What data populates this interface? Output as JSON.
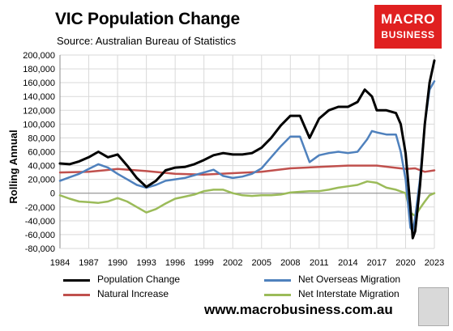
{
  "title": "VIC Population Change",
  "subtitle": "Source: Australian Bureau of Statistics",
  "logo": {
    "line1": "MACRO",
    "line2": "BUSINESS"
  },
  "website": "www.macrobusiness.com.au",
  "chart_data": {
    "type": "line",
    "title": "VIC Population Change",
    "ylabel": "Rolling Annual",
    "xlabel": "",
    "ylim": [
      -80000,
      200000
    ],
    "xlim": [
      1984,
      2023
    ],
    "yticks": [
      "200,000",
      "180,000",
      "160,000",
      "140,000",
      "120,000",
      "100,000",
      "80,000",
      "60,000",
      "40,000",
      "20,000",
      "0",
      "-20,000",
      "-40,000",
      "-60,000",
      "-80,000"
    ],
    "xticks": [
      "1984",
      "1987",
      "1990",
      "1993",
      "1996",
      "1999",
      "2002",
      "2005",
      "2008",
      "2011",
      "2014",
      "2017",
      "2020",
      "2023"
    ],
    "grid": true,
    "legend_position": "bottom",
    "series": [
      {
        "name": "Population Change",
        "color": "#000000",
        "x": [
          1984,
          1985,
          1986,
          1987,
          1988,
          1989,
          1990,
          1991,
          1992,
          1993,
          1994,
          1995,
          1996,
          1997,
          1998,
          1999,
          2000,
          2001,
          2002,
          2003,
          2004,
          2005,
          2006,
          2007,
          2008,
          2009,
          2010,
          2011,
          2012,
          2013,
          2014,
          2015,
          2015.75,
          2016.5,
          2017,
          2018,
          2019,
          2019.5,
          2020,
          2020.5,
          2020.75,
          2021,
          2021.5,
          2022,
          2022.5,
          2023
        ],
        "values": [
          43000,
          42000,
          46000,
          52000,
          60000,
          52000,
          56000,
          40000,
          22000,
          9000,
          18000,
          33000,
          37000,
          38000,
          42000,
          48000,
          55000,
          58000,
          56000,
          56000,
          58000,
          66000,
          80000,
          98000,
          112000,
          112000,
          80000,
          108000,
          120000,
          125000,
          125000,
          132000,
          150000,
          140000,
          120000,
          120000,
          116000,
          100000,
          58000,
          -20000,
          -65000,
          -55000,
          10000,
          100000,
          160000,
          192000
        ]
      },
      {
        "name": "Net Overseas Migration",
        "color": "#4f81bd",
        "x": [
          1984,
          1985,
          1986,
          1987,
          1988,
          1989,
          1990,
          1991,
          1992,
          1993,
          1994,
          1995,
          1996,
          1997,
          1998,
          1999,
          2000,
          2001,
          2002,
          2003,
          2004,
          2005,
          2006,
          2007,
          2008,
          2009,
          2010,
          2011,
          2012,
          2013,
          2014,
          2015,
          2016,
          2016.5,
          2017,
          2018,
          2019,
          2019.5,
          2020,
          2020.5,
          2020.75,
          2021,
          2021.5,
          2022,
          2022.5,
          2023
        ],
        "values": [
          18000,
          23000,
          28000,
          35000,
          42000,
          37000,
          28000,
          20000,
          12000,
          8000,
          12000,
          18000,
          20000,
          22000,
          26000,
          30000,
          34000,
          25000,
          22000,
          24000,
          28000,
          36000,
          52000,
          68000,
          82000,
          82000,
          45000,
          55000,
          58000,
          60000,
          58000,
          60000,
          78000,
          90000,
          88000,
          85000,
          85000,
          60000,
          20000,
          -50000,
          -55000,
          -35000,
          20000,
          100000,
          150000,
          162000
        ]
      },
      {
        "name": "Natural Increase",
        "color": "#c0504d",
        "x": [
          1984,
          1987,
          1990,
          1993,
          1996,
          1999,
          2002,
          2005,
          2008,
          2011,
          2014,
          2017,
          2020,
          2021,
          2022,
          2023
        ],
        "values": [
          30000,
          31000,
          35000,
          32000,
          28000,
          27000,
          29000,
          31000,
          36000,
          38000,
          40000,
          40000,
          35000,
          36000,
          31000,
          33000
        ]
      },
      {
        "name": "Net Interstate Migration",
        "color": "#9bbb59",
        "x": [
          1984,
          1985,
          1986,
          1987,
          1988,
          1989,
          1990,
          1991,
          1992,
          1993,
          1994,
          1995,
          1996,
          1997,
          1998,
          1999,
          2000,
          2001,
          2002,
          2003,
          2004,
          2005,
          2006,
          2007,
          2008,
          2009,
          2010,
          2011,
          2012,
          2013,
          2014,
          2015,
          2016,
          2017,
          2018,
          2019,
          2020,
          2020.5,
          2021,
          2021.5,
          2022,
          2022.5,
          2023
        ],
        "values": [
          -3000,
          -8000,
          -12000,
          -13000,
          -14000,
          -12000,
          -7000,
          -12000,
          -20000,
          -28000,
          -23000,
          -15000,
          -8000,
          -5000,
          -2000,
          3000,
          5000,
          5000,
          0,
          -3000,
          -4000,
          -3000,
          -3000,
          -2000,
          1000,
          2000,
          3000,
          3000,
          5000,
          8000,
          10000,
          12000,
          17000,
          15000,
          8000,
          5000,
          0,
          -28000,
          -33000,
          -22000,
          -12000,
          -3000,
          0
        ]
      }
    ]
  }
}
